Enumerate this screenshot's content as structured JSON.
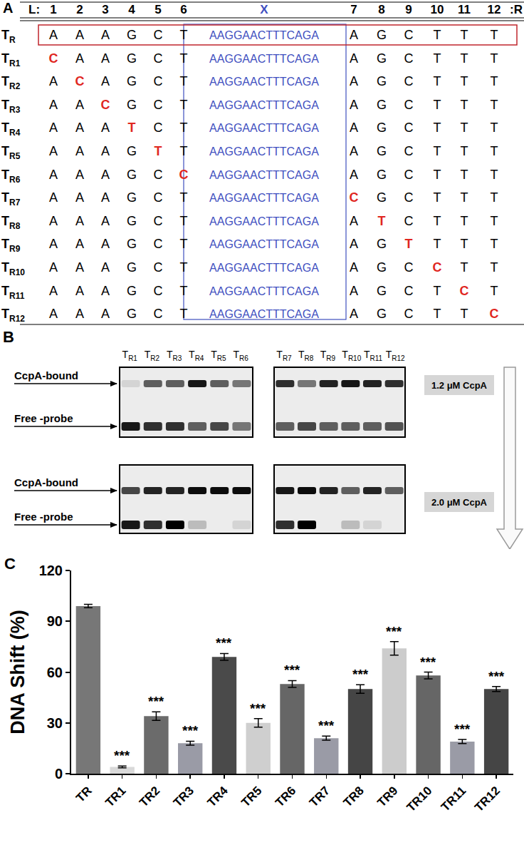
{
  "panel_labels": [
    "A",
    "B",
    "C"
  ],
  "panel_a": {
    "header": {
      "left": "L:",
      "positions_left": [
        "1",
        "2",
        "3",
        "4",
        "5",
        "6"
      ],
      "insert": "X",
      "positions_right": [
        "7",
        "8",
        "9",
        "10",
        "11",
        "12"
      ],
      "right": ":R"
    },
    "mutation_color": "#e0261f",
    "insert_color": "#3f4fbf",
    "reference_box_color": "#c0262c",
    "rows": [
      {
        "label": "T",
        "subscript": "R",
        "left": [
          "A",
          "A",
          "A",
          "G",
          "C",
          "T"
        ],
        "insert": "AAGGAACTTTCAGA",
        "right": [
          "A",
          "G",
          "C",
          "T",
          "T",
          "T"
        ]
      },
      {
        "label": "T",
        "subscript": "R1",
        "left": [
          "C",
          "A",
          "A",
          "G",
          "C",
          "T"
        ],
        "insert": "AAGGAACTTTCAGA",
        "right": [
          "A",
          "G",
          "C",
          "T",
          "T",
          "T"
        ],
        "mutated_position": 1
      },
      {
        "label": "T",
        "subscript": "R2",
        "left": [
          "A",
          "C",
          "A",
          "G",
          "C",
          "T"
        ],
        "insert": "AAGGAACTTTCAGA",
        "right": [
          "A",
          "G",
          "C",
          "T",
          "T",
          "T"
        ],
        "mutated_position": 2
      },
      {
        "label": "T",
        "subscript": "R3",
        "left": [
          "A",
          "A",
          "C",
          "G",
          "C",
          "T"
        ],
        "insert": "AAGGAACTTTCAGA",
        "right": [
          "A",
          "G",
          "C",
          "T",
          "T",
          "T"
        ],
        "mutated_position": 3
      },
      {
        "label": "T",
        "subscript": "R4",
        "left": [
          "A",
          "A",
          "A",
          "T",
          "C",
          "T"
        ],
        "insert": "AAGGAACTTTCAGA",
        "right": [
          "A",
          "G",
          "C",
          "T",
          "T",
          "T"
        ],
        "mutated_position": 4
      },
      {
        "label": "T",
        "subscript": "R5",
        "left": [
          "A",
          "A",
          "A",
          "G",
          "T",
          "T"
        ],
        "insert": "AAGGAACTTTCAGA",
        "right": [
          "A",
          "G",
          "C",
          "T",
          "T",
          "T"
        ],
        "mutated_position": 5
      },
      {
        "label": "T",
        "subscript": "R6",
        "left": [
          "A",
          "A",
          "A",
          "G",
          "C",
          "C"
        ],
        "insert": "AAGGAACTTTCAGA",
        "right": [
          "A",
          "G",
          "C",
          "T",
          "T",
          "T"
        ],
        "mutated_position": 6
      },
      {
        "label": "T",
        "subscript": "R7",
        "left": [
          "A",
          "A",
          "A",
          "G",
          "C",
          "T"
        ],
        "insert": "AAGGAACTTTCAGA",
        "right": [
          "C",
          "G",
          "C",
          "T",
          "T",
          "T"
        ],
        "mutated_position": 7
      },
      {
        "label": "T",
        "subscript": "R8",
        "left": [
          "A",
          "A",
          "A",
          "G",
          "C",
          "T"
        ],
        "insert": "AAGGAACTTTCAGA",
        "right": [
          "A",
          "T",
          "C",
          "T",
          "T",
          "T"
        ],
        "mutated_position": 8
      },
      {
        "label": "T",
        "subscript": "R9",
        "left": [
          "A",
          "A",
          "A",
          "G",
          "C",
          "T"
        ],
        "insert": "AAGGAACTTTCAGA",
        "right": [
          "A",
          "G",
          "T",
          "T",
          "T",
          "T"
        ],
        "mutated_position": 9
      },
      {
        "label": "T",
        "subscript": "R10",
        "left": [
          "A",
          "A",
          "A",
          "G",
          "C",
          "T"
        ],
        "insert": "AAGGAACTTTCAGA",
        "right": [
          "A",
          "G",
          "C",
          "C",
          "T",
          "T"
        ],
        "mutated_position": 10
      },
      {
        "label": "T",
        "subscript": "R11",
        "left": [
          "A",
          "A",
          "A",
          "G",
          "C",
          "T"
        ],
        "insert": "AAGGAACTTTCAGA",
        "right": [
          "A",
          "G",
          "C",
          "T",
          "C",
          "T"
        ],
        "mutated_position": 11
      },
      {
        "label": "T",
        "subscript": "R12",
        "left": [
          "A",
          "A",
          "A",
          "G",
          "C",
          "T"
        ],
        "insert": "AAGGAACTTTCAGA",
        "right": [
          "A",
          "G",
          "C",
          "T",
          "T",
          "C"
        ],
        "mutated_position": 12
      }
    ]
  },
  "panel_b": {
    "lanes_left": [
      {
        "label": "T",
        "subscript": "R1"
      },
      {
        "label": "T",
        "subscript": "R2"
      },
      {
        "label": "T",
        "subscript": "R3"
      },
      {
        "label": "T",
        "subscript": "R4"
      },
      {
        "label": "T",
        "subscript": "R5"
      },
      {
        "label": "T",
        "subscript": "R6"
      }
    ],
    "lanes_right": [
      {
        "label": "T",
        "subscript": "R7"
      },
      {
        "label": "T",
        "subscript": "R8"
      },
      {
        "label": "T",
        "subscript": "R9"
      },
      {
        "label": "T",
        "subscript": "R10"
      },
      {
        "label": "T",
        "subscript": "R11"
      },
      {
        "label": "T",
        "subscript": "R12"
      }
    ],
    "band_labels": {
      "bound": "CcpA-bound",
      "free": "Free -probe"
    },
    "gels": [
      {
        "condition": "1.2 μM CcpA",
        "left": {
          "bound": [
            0.1,
            0.6,
            0.6,
            0.9,
            0.6,
            0.5
          ],
          "free": [
            0.9,
            0.8,
            0.8,
            0.6,
            0.7,
            0.5
          ]
        },
        "right": {
          "bound": [
            0.8,
            0.5,
            0.85,
            0.9,
            0.85,
            0.8
          ],
          "free": [
            0.6,
            0.7,
            0.6,
            0.6,
            0.6,
            0.65
          ]
        }
      },
      {
        "condition": "2.0 μM CcpA",
        "left": {
          "bound": [
            0.7,
            0.85,
            0.85,
            0.95,
            0.95,
            0.95
          ],
          "free": [
            0.9,
            0.8,
            1.0,
            0.2,
            0.0,
            0.1
          ]
        },
        "right": {
          "bound": [
            0.9,
            0.95,
            0.85,
            0.6,
            0.85,
            0.6
          ],
          "free": [
            0.8,
            1.0,
            0.0,
            0.2,
            0.1,
            0.0
          ]
        }
      }
    ]
  },
  "chart_data": {
    "type": "bar",
    "y_label": "DNA Shift (%)",
    "categories": [
      "TR",
      "TR1",
      "TR2",
      "TR3",
      "TR4",
      "TR5",
      "TR6",
      "TR7",
      "TR8",
      "TR9",
      "TR10",
      "TR11",
      "TR12"
    ],
    "values": [
      99,
      4,
      34,
      18,
      69,
      30,
      53,
      21,
      50,
      74,
      58,
      19,
      50
    ],
    "errors": [
      1,
      0.5,
      2.5,
      1.2,
      2,
      2.5,
      2,
      1.2,
      2.5,
      4,
      2,
      1.2,
      1.5
    ],
    "colors": [
      "#777777",
      "#d9d9d9",
      "#6b6b6b",
      "#9a9ba6",
      "#4a4a4a",
      "#cfcfcf",
      "#666666",
      "#9a9ba6",
      "#454545",
      "#cccccc",
      "#666666",
      "#9a9ba6",
      "#454545"
    ],
    "ylim": [
      0,
      120
    ],
    "yticks": [
      0,
      30,
      60,
      90,
      120
    ],
    "grid": false,
    "annotations": [
      {
        "category": "TR1",
        "text": "***"
      },
      {
        "category": "TR2",
        "text": "***"
      },
      {
        "category": "TR3",
        "text": "***"
      },
      {
        "category": "TR4",
        "text": "***"
      },
      {
        "category": "TR5",
        "text": "***"
      },
      {
        "category": "TR6",
        "text": "***"
      },
      {
        "category": "TR7",
        "text": "***"
      },
      {
        "category": "TR8",
        "text": "***"
      },
      {
        "category": "TR9",
        "text": "***"
      },
      {
        "category": "TR10",
        "text": "***"
      },
      {
        "category": "TR11",
        "text": "***"
      },
      {
        "category": "TR12",
        "text": "***"
      }
    ]
  }
}
